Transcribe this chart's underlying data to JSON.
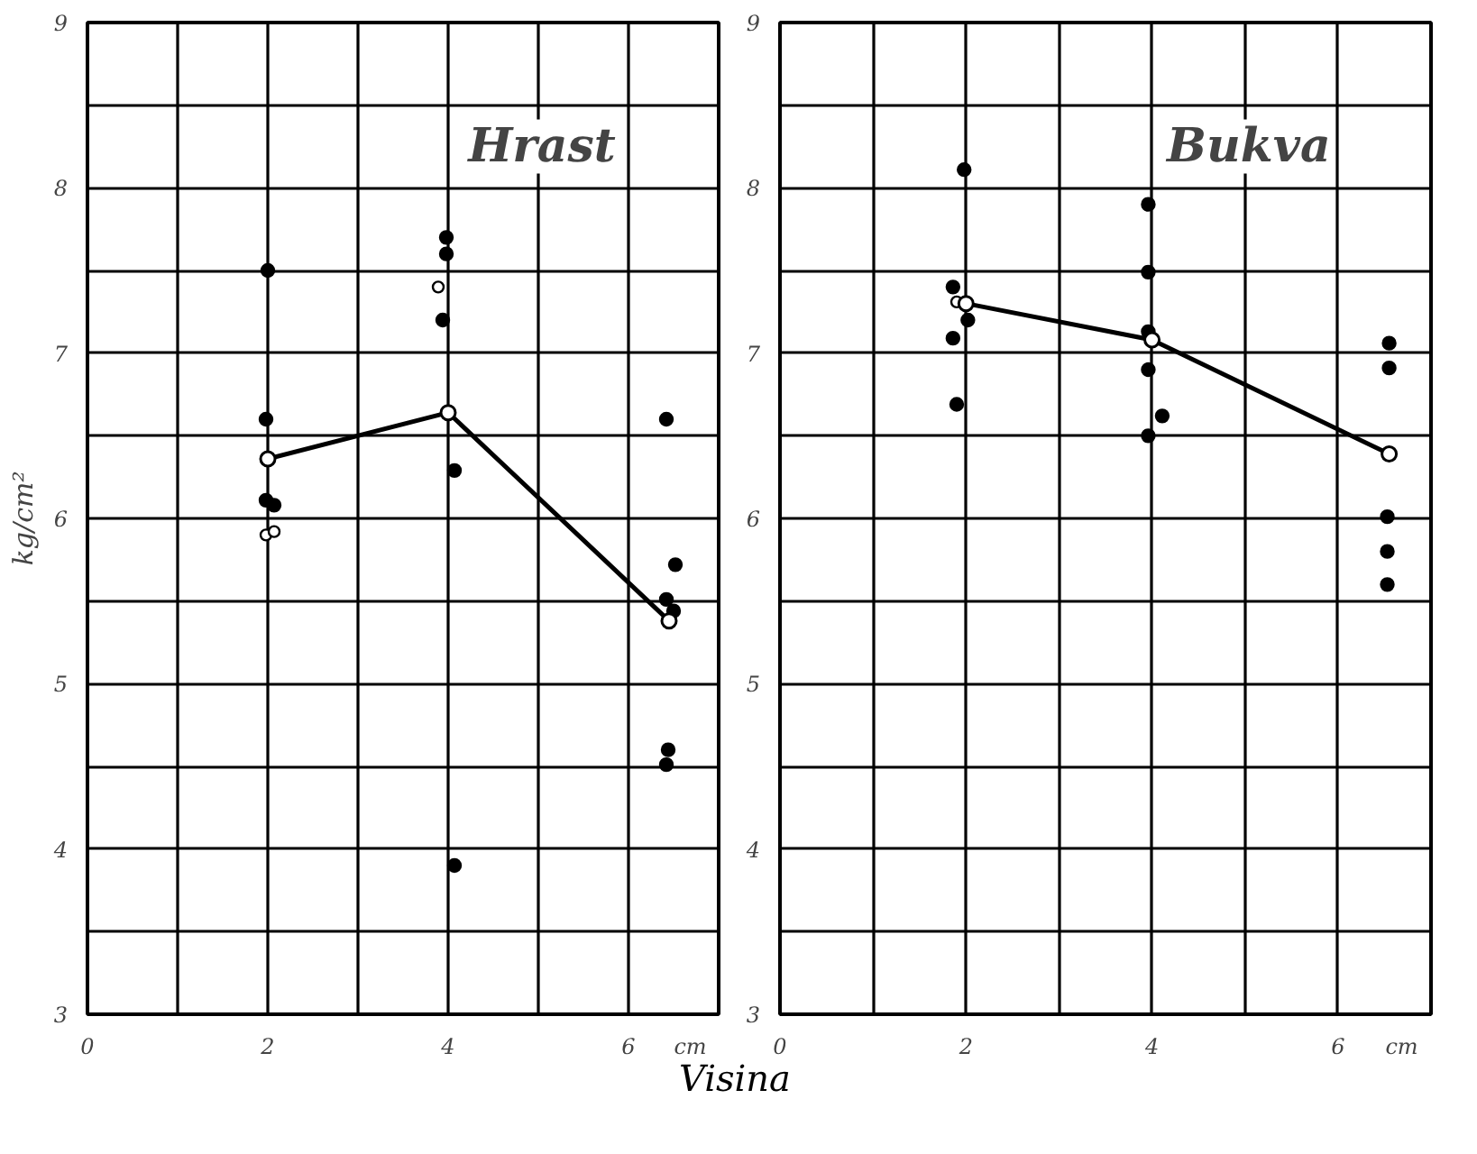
{
  "chart_data": [
    {
      "type": "scatter",
      "title": "Hrast",
      "xlabel": "Visina",
      "ylabel": "kg/cm²",
      "annotations": [
        "cm"
      ],
      "xlim": [
        0,
        7
      ],
      "ylim": [
        3,
        9
      ],
      "xticks": [
        0,
        {
          "value": 1,
          "label": null
        },
        2,
        {
          "value": 3,
          "label": null
        },
        4,
        {
          "value": 5,
          "label": null
        },
        6,
        {
          "value": 7,
          "label": null
        }
      ],
      "yticks": [
        3,
        {
          "value": 3.5,
          "label": null
        },
        4,
        {
          "value": 4.5,
          "label": null
        },
        5,
        {
          "value": 5.5,
          "label": null
        },
        6,
        {
          "value": 6.5,
          "label": null
        },
        7,
        {
          "value": 7.5,
          "label": null
        },
        8,
        {
          "value": 8.5,
          "label": null
        },
        9
      ],
      "grid": true,
      "marker": "circle",
      "series": [
        {
          "color": "#000000",
          "x": [
            2.0,
            1.98,
            1.98,
            2.07,
            3.98,
            3.98,
            3.94,
            4.07,
            4.07,
            6.42,
            6.52,
            6.42,
            6.5,
            6.44,
            6.42
          ],
          "values": [
            7.5,
            6.6,
            6.11,
            6.08,
            7.7,
            7.6,
            7.2,
            6.29,
            3.9,
            6.6,
            5.72,
            5.51,
            5.44,
            4.6,
            4.51
          ]
        },
        {
          "color": "#ffffff",
          "x": [
            1.98,
            2.07,
            3.89
          ],
          "values": [
            5.9,
            5.92,
            7.4
          ]
        },
        {
          "type": "line",
          "color": "#000000",
          "x": [
            2.0,
            4.0,
            6.45
          ],
          "values": [
            6.36,
            6.64,
            5.38
          ]
        }
      ]
    },
    {
      "type": "scatter",
      "title": "Bukva",
      "annotations": [
        "cm"
      ],
      "xlim": [
        0,
        7
      ],
      "ylim": [
        3,
        9
      ],
      "xticks": [
        0,
        {
          "value": 1,
          "label": null
        },
        2,
        {
          "value": 3,
          "label": null
        },
        4,
        {
          "value": 5,
          "label": null
        },
        6,
        {
          "value": 7,
          "label": null
        }
      ],
      "yticks": [
        3,
        {
          "value": 3.5,
          "label": null
        },
        4,
        {
          "value": 4.5,
          "label": null
        },
        5,
        {
          "value": 5.5,
          "label": null
        },
        6,
        {
          "value": 6.5,
          "label": null
        },
        7,
        {
          "value": 7.5,
          "label": null
        },
        8,
        {
          "value": 8.5,
          "label": null
        },
        9
      ],
      "grid": true,
      "marker": "circle",
      "series": [
        {
          "color": "#000000",
          "x": [
            1.86,
            1.86,
            1.9,
            1.98,
            2.02,
            3.96,
            3.96,
            3.96,
            3.96,
            4.11,
            3.96,
            6.55,
            6.55,
            6.53,
            6.53,
            6.53
          ],
          "values": [
            7.4,
            7.09,
            6.69,
            8.11,
            7.2,
            7.9,
            7.49,
            7.13,
            6.9,
            6.62,
            6.5,
            7.06,
            6.91,
            6.01,
            5.8,
            5.6
          ]
        },
        {
          "color": "#ffffff",
          "x": [
            1.9
          ],
          "values": [
            7.31
          ]
        },
        {
          "type": "line",
          "color": "#000000",
          "x": [
            2.0,
            4.0,
            6.55
          ],
          "values": [
            7.3,
            7.08,
            6.39
          ]
        }
      ]
    }
  ]
}
